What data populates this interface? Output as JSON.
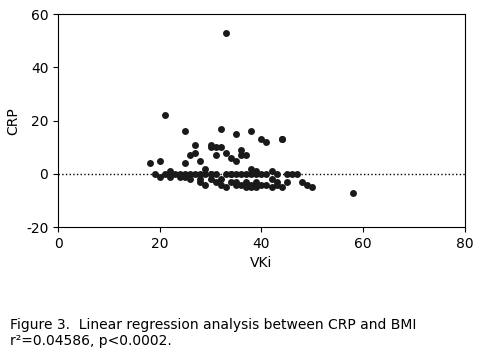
{
  "chart_data": {
    "type": "scatter",
    "x": [
      18,
      19,
      20,
      20,
      21,
      21,
      22,
      22,
      22,
      23,
      24,
      24,
      25,
      25,
      25,
      25,
      26,
      26,
      26,
      27,
      27,
      27,
      28,
      28,
      28,
      28,
      29,
      29,
      29,
      30,
      30,
      30,
      30,
      30,
      31,
      31,
      31,
      31,
      32,
      32,
      32,
      32,
      33,
      33,
      33,
      33,
      34,
      34,
      34,
      34,
      35,
      35,
      35,
      35,
      35,
      36,
      36,
      36,
      36,
      37,
      37,
      37,
      37,
      38,
      38,
      38,
      38,
      38,
      39,
      39,
      39,
      39,
      40,
      40,
      40,
      41,
      41,
      41,
      42,
      42,
      42,
      43,
      43,
      43,
      44,
      44,
      44,
      45,
      45,
      46,
      47,
      48,
      49,
      50,
      58
    ],
    "values": [
      4,
      0,
      -1,
      5,
      22,
      0,
      -1,
      0,
      1,
      0,
      0,
      -1,
      4,
      0,
      -1,
      16,
      0,
      7,
      -2,
      0,
      11,
      8,
      -3,
      0,
      5,
      -2,
      -4,
      2,
      0,
      10,
      11,
      0,
      -2,
      0,
      10,
      7,
      0,
      -3,
      17,
      10,
      -4,
      -2,
      53,
      0,
      8,
      -5,
      6,
      -3,
      0,
      0,
      15,
      5,
      -3,
      0,
      -4,
      9,
      0,
      7,
      -4,
      0,
      7,
      -5,
      -3,
      16,
      2,
      -4,
      0,
      -5,
      1,
      0,
      -3,
      -5,
      13,
      -4,
      0,
      0,
      12,
      -4,
      1,
      -2,
      -5,
      0,
      -3,
      -4,
      13,
      13,
      -5,
      0,
      -3,
      0,
      0,
      -3,
      -4,
      -5,
      -7
    ],
    "color": "#1a1a1a",
    "marker": "o",
    "xlim": [
      0,
      80
    ],
    "ylim": [
      -20,
      60
    ],
    "xticks": [
      0,
      20,
      40,
      60,
      80
    ],
    "yticks": [
      -20,
      0,
      20,
      40,
      60
    ],
    "x_label": "VKi",
    "y_label": "CRP",
    "reference_line": {
      "y": 0,
      "line_style": "dotted",
      "color": "black"
    },
    "annotations": [
      "Figure 3.  Linear regression analysis between CRP and BMI",
      "r²=0.04586, p<0.0002."
    ],
    "grid": false
  }
}
